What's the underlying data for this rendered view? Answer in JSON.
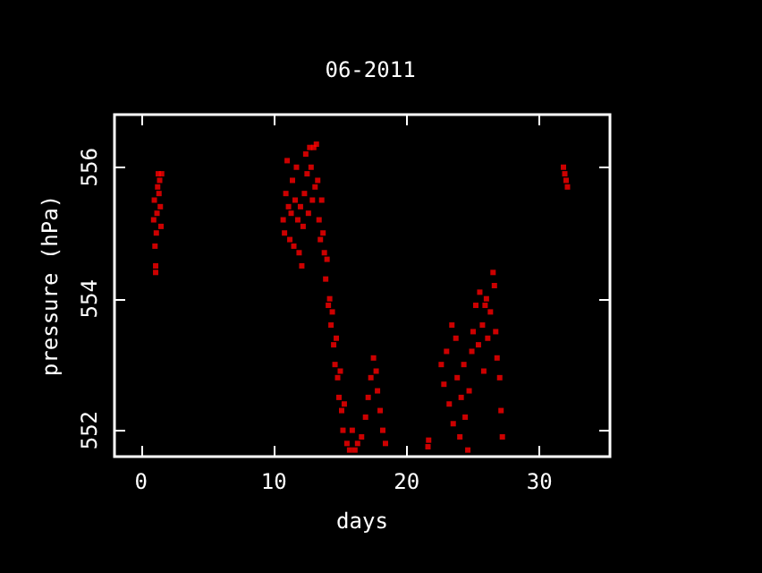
{
  "chart_data": {
    "type": "scatter",
    "title": "06-2011",
    "xlabel": "days",
    "ylabel": "pressure (hPa)",
    "xlim": [
      -2,
      35.3
    ],
    "ylim": [
      551.6,
      556.8
    ],
    "xticks": [
      0,
      10,
      20,
      30
    ],
    "yticks": [
      552,
      554,
      556
    ],
    "grid": false,
    "marker": "square",
    "series": [
      {
        "color": "#ff0000",
        "x": [
          0.95,
          1.0,
          1.05,
          1.1,
          1.1,
          1.15,
          1.2,
          1.25,
          1.3,
          1.35,
          1.4,
          1.45,
          1.5,
          1.55,
          10.7,
          10.8,
          10.9,
          11.0,
          11.1,
          11.2,
          11.3,
          11.4,
          11.5,
          11.6,
          11.7,
          11.8,
          11.9,
          12.0,
          12.1,
          12.2,
          12.3,
          12.4,
          12.5,
          12.6,
          12.7,
          12.8,
          12.9,
          13.0,
          13.1,
          13.2,
          13.3,
          13.4,
          13.5,
          13.6,
          13.7,
          13.8,
          13.9,
          14.0,
          14.1,
          14.2,
          14.3,
          14.4,
          14.5,
          14.6,
          14.7,
          14.8,
          14.9,
          15.0,
          15.1,
          15.2,
          15.3,
          15.5,
          15.7,
          15.9,
          16.1,
          16.3,
          16.6,
          16.9,
          17.1,
          17.3,
          17.5,
          17.7,
          17.8,
          18.0,
          18.2,
          18.4,
          21.6,
          21.65,
          22.6,
          22.8,
          23.0,
          23.2,
          23.4,
          23.5,
          23.7,
          23.8,
          24.0,
          24.1,
          24.3,
          24.4,
          24.6,
          24.7,
          24.9,
          25.0,
          25.2,
          25.4,
          25.5,
          25.7,
          25.8,
          25.9,
          26.0,
          26.1,
          26.3,
          26.5,
          26.6,
          26.7,
          26.8,
          27.0,
          27.1,
          27.2,
          31.8,
          31.9,
          32.0,
          32.1
        ],
        "values": [
          555.2,
          555.5,
          554.8,
          554.5,
          554.4,
          555.0,
          555.3,
          555.7,
          555.9,
          555.6,
          555.8,
          555.4,
          555.1,
          555.9,
          555.2,
          555.0,
          555.6,
          556.1,
          555.4,
          554.9,
          555.3,
          555.8,
          554.8,
          555.5,
          556.0,
          555.2,
          554.7,
          555.4,
          554.5,
          555.1,
          555.6,
          556.2,
          555.9,
          555.3,
          556.3,
          556.0,
          555.5,
          556.3,
          555.7,
          556.35,
          555.8,
          555.2,
          554.9,
          555.5,
          555.0,
          554.7,
          554.3,
          554.6,
          553.9,
          554.0,
          553.6,
          553.8,
          553.3,
          553.0,
          553.4,
          552.8,
          552.5,
          552.9,
          552.3,
          552.0,
          552.4,
          551.8,
          551.7,
          552.0,
          551.7,
          551.8,
          551.9,
          552.2,
          552.5,
          552.8,
          553.1,
          552.9,
          552.6,
          552.3,
          552.0,
          551.8,
          551.75,
          551.85,
          553.0,
          552.7,
          553.2,
          552.4,
          553.6,
          552.1,
          553.4,
          552.8,
          551.9,
          552.5,
          553.0,
          552.2,
          551.7,
          552.6,
          553.2,
          553.5,
          553.9,
          553.3,
          554.1,
          553.6,
          552.9,
          553.9,
          554.0,
          553.4,
          553.8,
          554.4,
          554.2,
          553.5,
          553.1,
          552.8,
          552.3,
          551.9,
          556.0,
          555.9,
          555.8,
          555.7
        ]
      }
    ]
  }
}
